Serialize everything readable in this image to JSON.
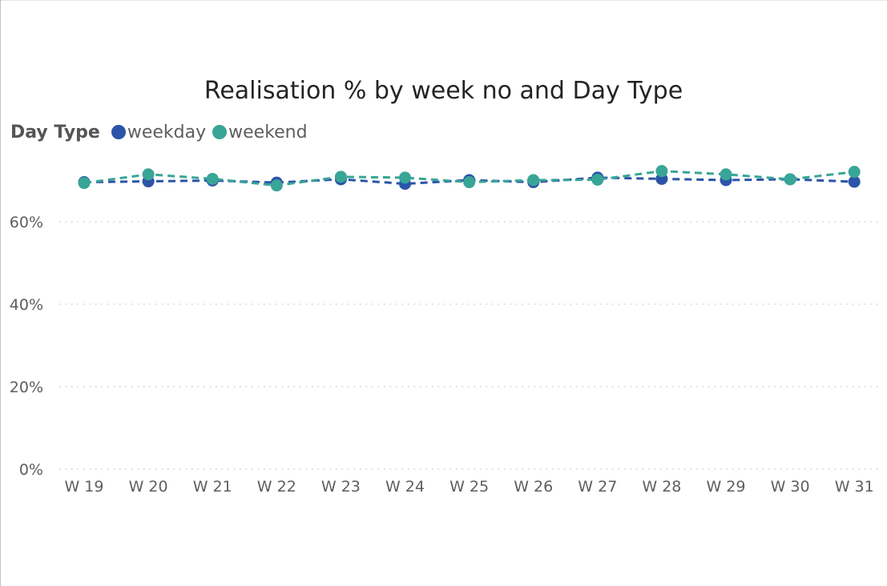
{
  "chart_data": {
    "type": "line",
    "title": "Realisation % by week no and Day Type",
    "legend": {
      "title": "Day Type",
      "placement": "top-left"
    },
    "categories": [
      "W 19",
      "W 20",
      "W 21",
      "W 22",
      "W 23",
      "W 24",
      "W 25",
      "W 26",
      "W 27",
      "W 28",
      "W 29",
      "W 30",
      "W 31"
    ],
    "series": [
      {
        "name": "weekday",
        "color": "#2b54a8",
        "line_style": "dashed",
        "values": [
          69.6,
          69.8,
          70.0,
          69.5,
          70.3,
          69.2,
          70.1,
          69.6,
          70.7,
          70.4,
          70.1,
          70.3,
          69.7
        ]
      },
      {
        "name": "weekend",
        "color": "#38a597",
        "line_style": "dashed",
        "values": [
          69.4,
          71.5,
          70.4,
          68.8,
          70.9,
          70.7,
          69.6,
          70.1,
          70.2,
          72.3,
          71.5,
          70.3,
          72.1
        ]
      }
    ],
    "y_ticks": [
      {
        "value": 0,
        "label": "0%"
      },
      {
        "value": 20,
        "label": "20%"
      },
      {
        "value": 40,
        "label": "40%"
      },
      {
        "value": 60,
        "label": "60%"
      }
    ],
    "ylim": [
      0,
      75
    ],
    "grid": "horizontal-dotted",
    "xlabel": "",
    "ylabel": ""
  }
}
